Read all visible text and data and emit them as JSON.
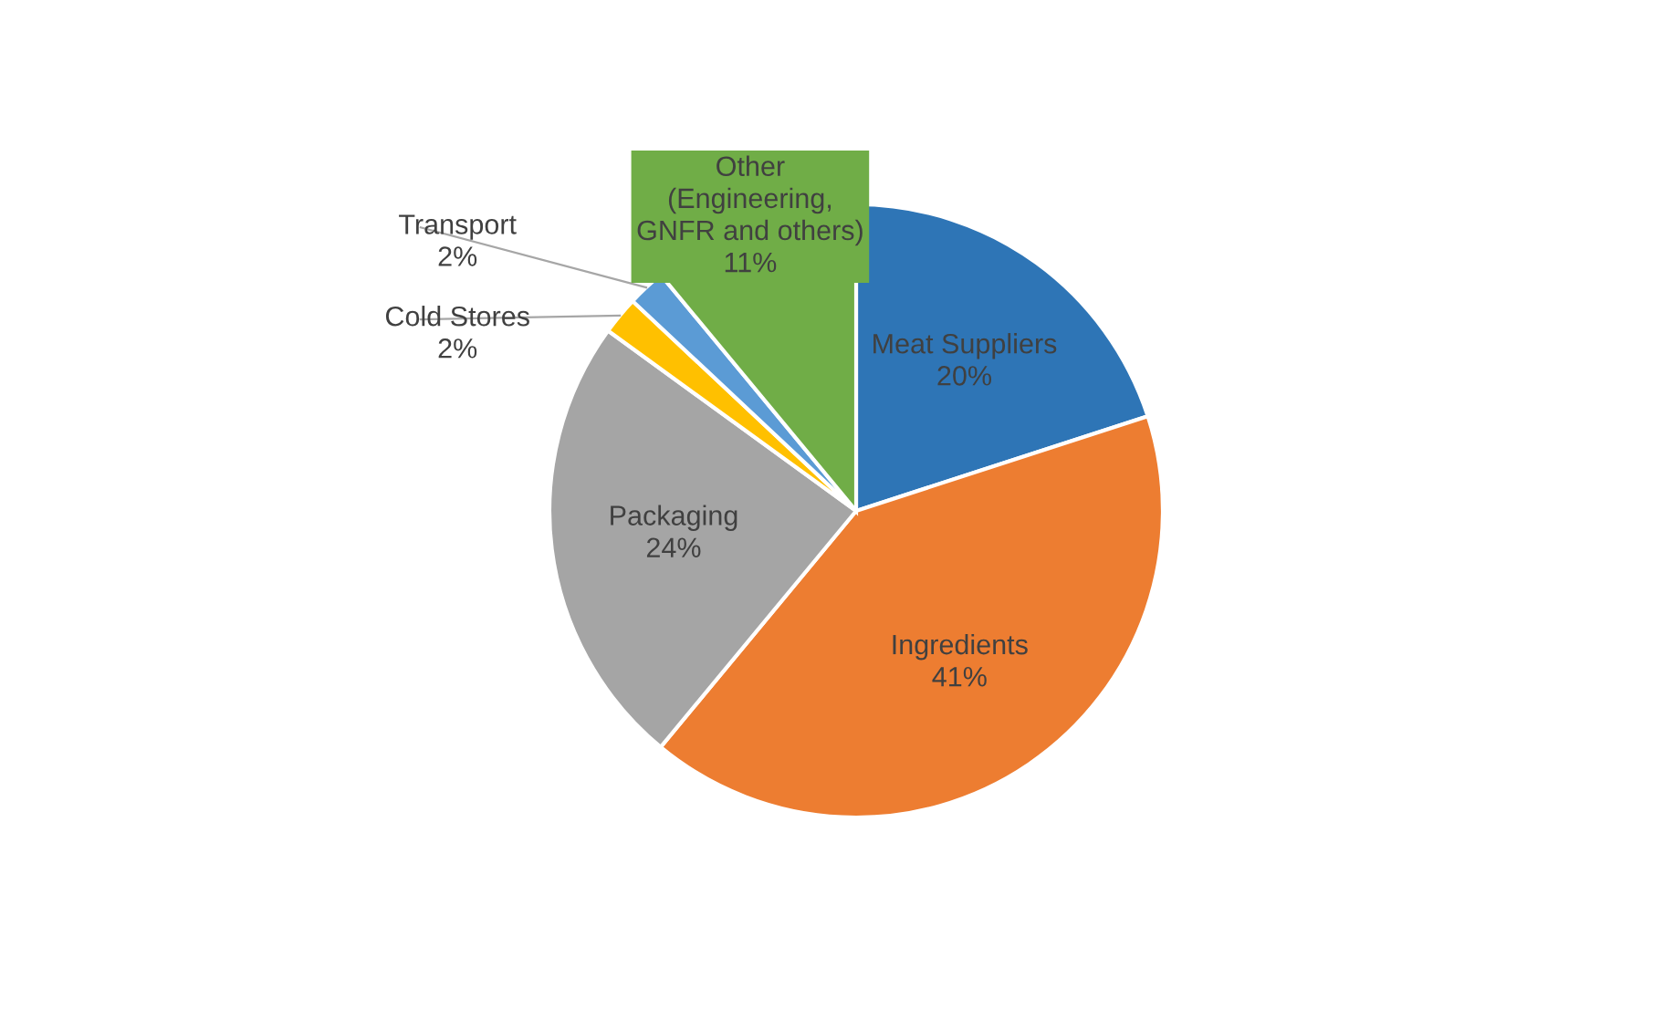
{
  "chart_data": {
    "type": "pie",
    "categories": [
      "Meat Suppliers",
      "Ingredients",
      "Packaging",
      "Cold Stores",
      "Transport",
      "Other\n(Engineering,\nGNFR and others)"
    ],
    "values": [
      20,
      41,
      24,
      2,
      2,
      11
    ],
    "colors": [
      "#2e75b6",
      "#ed7d31",
      "#a5a5a5",
      "#ffc000",
      "#5b9bd5",
      "#70ad47"
    ],
    "value_labels": [
      "20%",
      "41%",
      "24%",
      "2%",
      "2%",
      "11%"
    ]
  }
}
